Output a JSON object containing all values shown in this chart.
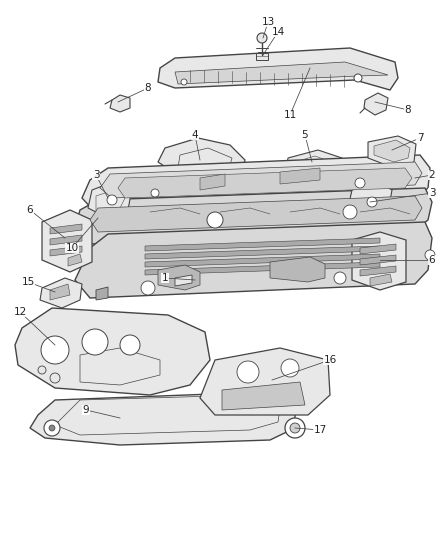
{
  "background_color": "#ffffff",
  "line_color": "#444444",
  "fill_light": "#e8e8e8",
  "fill_mid": "#d8d8d8",
  "fill_dark": "#c0c0c0",
  "fig_width": 4.38,
  "fig_height": 5.33,
  "dpi": 100
}
